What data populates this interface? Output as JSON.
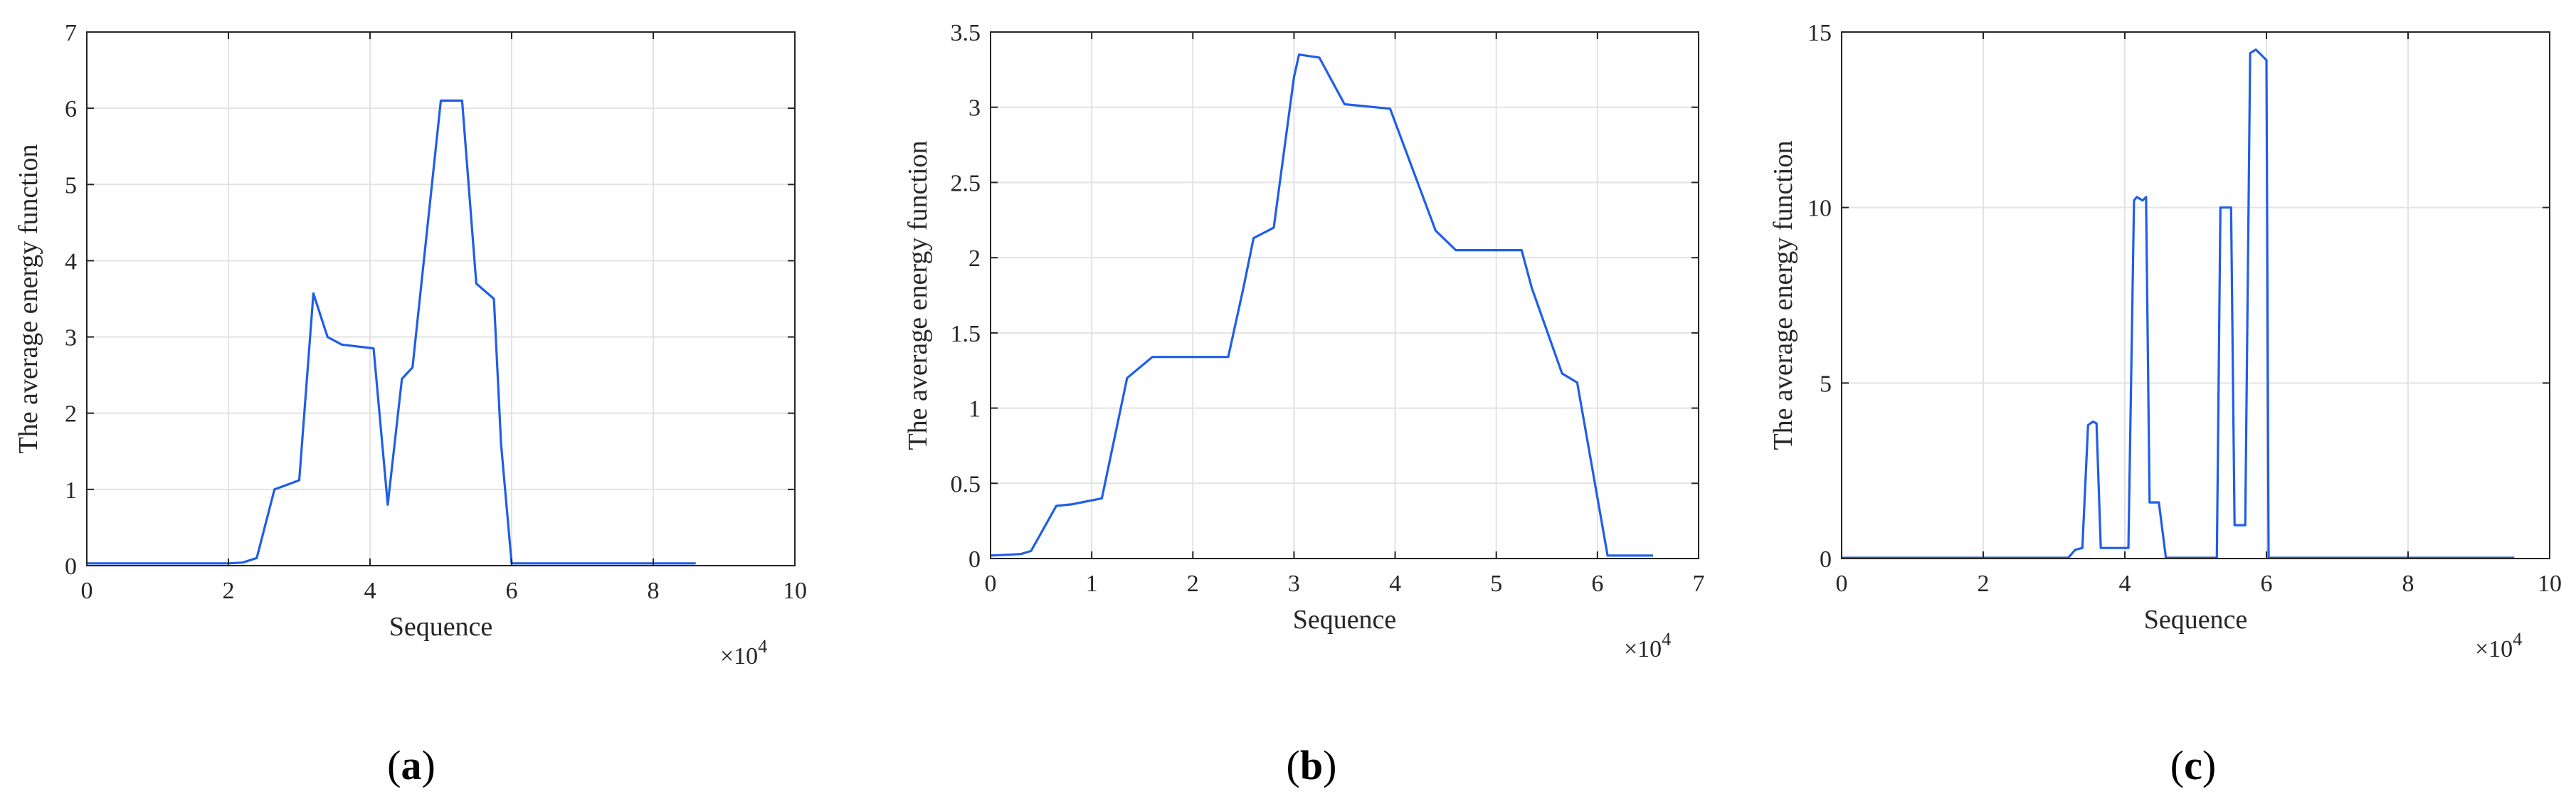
{
  "chart_data": [
    {
      "type": "line",
      "panel_label": {
        "open": "(",
        "letter": "a",
        "close": ")"
      },
      "xlabel": "Sequence",
      "ylabel": "The average energy function",
      "x_multiplier": "×10",
      "x_multiplier_exp": "4",
      "xlim": [
        0,
        100000
      ],
      "ylim": [
        0,
        7
      ],
      "xticks": [
        0,
        20000,
        40000,
        60000,
        80000,
        100000
      ],
      "xtick_labels": [
        "0",
        "2",
        "4",
        "6",
        "8",
        "10"
      ],
      "yticks": [
        0,
        1,
        2,
        3,
        4,
        5,
        6,
        7
      ],
      "ytick_labels": [
        "0",
        "1",
        "2",
        "3",
        "4",
        "5",
        "6",
        "7"
      ],
      "grid": true,
      "line_color": "#1f5ee8",
      "series": [
        {
          "x": [
            0,
            20000,
            22000,
            24000,
            26500,
            30000,
            32000,
            34000,
            36000,
            40500,
            42500,
            44500,
            46000,
            50000,
            50500,
            53000,
            55000,
            57500,
            58500,
            60000,
            86000
          ],
          "y": [
            0.03,
            0.03,
            0.04,
            0.1,
            1.0,
            1.12,
            3.57,
            3.0,
            2.9,
            2.85,
            0.8,
            2.45,
            2.6,
            6.1,
            6.1,
            6.1,
            3.7,
            3.5,
            1.6,
            0.03,
            0.03
          ]
        }
      ]
    },
    {
      "type": "line",
      "panel_label": {
        "open": "(",
        "letter": "b",
        "close": ")"
      },
      "xlabel": "Sequence",
      "ylabel": "The average energy function",
      "x_multiplier": "×10",
      "x_multiplier_exp": "4",
      "xlim": [
        0,
        70000
      ],
      "ylim": [
        0,
        3.5
      ],
      "xticks": [
        0,
        10000,
        20000,
        30000,
        40000,
        50000,
        60000,
        70000
      ],
      "xtick_labels": [
        "0",
        "1",
        "2",
        "3",
        "4",
        "5",
        "6",
        "7"
      ],
      "yticks": [
        0,
        0.5,
        1,
        1.5,
        2,
        2.5,
        3,
        3.5
      ],
      "ytick_labels": [
        "0",
        "0.5",
        "1",
        "1.5",
        "2",
        "2.5",
        "3",
        "3.5"
      ],
      "grid": true,
      "line_color": "#1f5ee8",
      "series": [
        {
          "x": [
            0,
            3000,
            4000,
            6500,
            8000,
            11000,
            13500,
            16000,
            23500,
            25000,
            26000,
            28000,
            30000,
            30500,
            32500,
            35000,
            39500,
            44000,
            46000,
            52500,
            53500,
            56500,
            58000,
            61000,
            65500
          ],
          "y": [
            0.02,
            0.03,
            0.05,
            0.35,
            0.36,
            0.4,
            1.2,
            1.34,
            1.34,
            1.8,
            2.13,
            2.2,
            3.2,
            3.35,
            3.33,
            3.02,
            2.99,
            2.18,
            2.05,
            2.05,
            1.8,
            1.23,
            1.17,
            0.02,
            0.02
          ]
        }
      ]
    },
    {
      "type": "line",
      "panel_label": {
        "open": "(",
        "letter": "c",
        "close": ")"
      },
      "xlabel": "Sequence",
      "ylabel": "The average energy function",
      "x_multiplier": "×10",
      "x_multiplier_exp": "4",
      "xlim": [
        0,
        100000
      ],
      "ylim": [
        0,
        15
      ],
      "xticks": [
        0,
        20000,
        40000,
        60000,
        80000,
        100000
      ],
      "xtick_labels": [
        "0",
        "2",
        "4",
        "6",
        "8",
        "10"
      ],
      "yticks": [
        0,
        5,
        10,
        15
      ],
      "ytick_labels": [
        "0",
        "5",
        "10",
        "15"
      ],
      "grid": true,
      "line_color": "#1f5ee8",
      "series": [
        {
          "x": [
            0,
            32000,
            33000,
            34000,
            34800,
            35500,
            36000,
            36600,
            38000,
            40500,
            41300,
            41700,
            42500,
            43000,
            43500,
            44800,
            45800,
            46300,
            53000,
            53500,
            54500,
            55000,
            55500,
            57000,
            57700,
            58500,
            59500,
            60000,
            60300,
            95000
          ],
          "y": [
            0.02,
            0.02,
            0.25,
            0.3,
            3.8,
            3.9,
            3.85,
            0.3,
            0.3,
            0.3,
            10.2,
            10.3,
            10.2,
            10.3,
            1.6,
            1.6,
            0.02,
            0.02,
            0.02,
            10.0,
            10.0,
            10.0,
            0.95,
            0.95,
            14.4,
            14.5,
            14.3,
            14.2,
            0.02,
            0.02
          ]
        }
      ]
    }
  ]
}
